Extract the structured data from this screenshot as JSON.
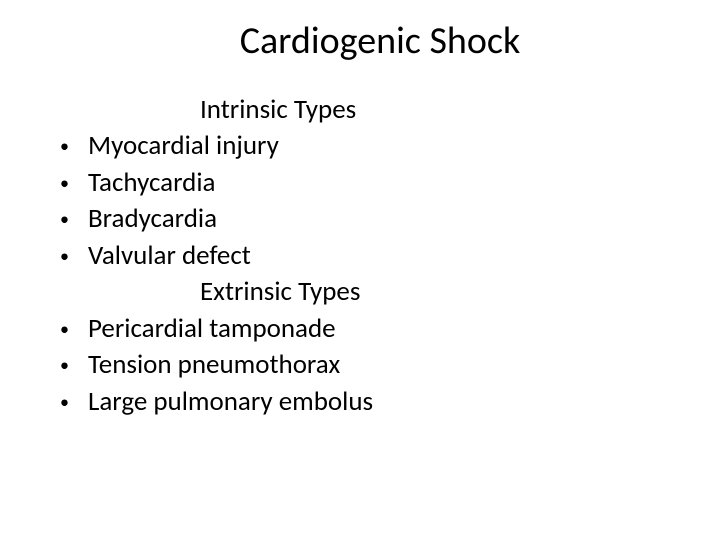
{
  "title": "Cardiogenic Shock",
  "sections": [
    {
      "heading": "Intrinsic Types",
      "items": [
        "Myocardial injury",
        "Tachycardia",
        "Bradycardia",
        "Valvular defect"
      ]
    },
    {
      "heading": "Extrinsic Types",
      "items": [
        "Pericardial tamponade",
        "Tension pneumothorax",
        "Large pulmonary embolus"
      ]
    }
  ],
  "colors": {
    "background": "#ffffff",
    "text": "#000000"
  },
  "fonts": {
    "title_size": 38,
    "body_size": 27,
    "family": "Calibri"
  }
}
